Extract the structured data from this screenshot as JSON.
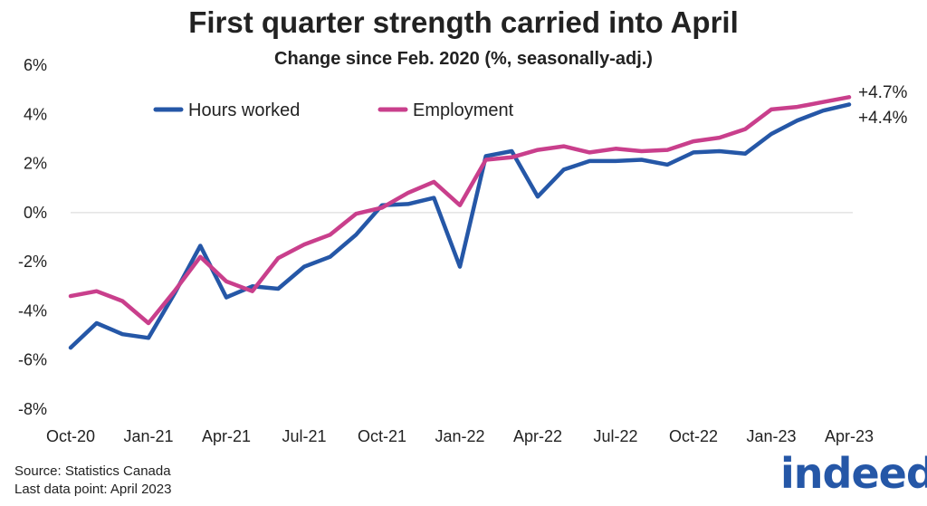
{
  "chart_data": {
    "type": "line",
    "title": "First quarter strength carried into April",
    "subtitle": "Change since Feb. 2020 (%, seasonally-adj.)",
    "xlabel": "",
    "ylabel": "",
    "ylim": [
      -8,
      6
    ],
    "y_ticks": [
      "6%",
      "4%",
      "2%",
      "0%",
      "-2%",
      "-4%",
      "-6%",
      "-8%"
    ],
    "y_tick_values": [
      6,
      4,
      2,
      0,
      -2,
      -4,
      -6,
      -8
    ],
    "x_tick_labels": [
      "Oct-20",
      "Jan-21",
      "Apr-21",
      "Jul-21",
      "Oct-21",
      "Jan-22",
      "Apr-22",
      "Jul-22",
      "Oct-22",
      "Jan-23",
      "Apr-23"
    ],
    "x_tick_indices": [
      0,
      3,
      6,
      9,
      12,
      15,
      18,
      21,
      24,
      27,
      30
    ],
    "grid": "zero-line only",
    "legend_position": "top-left",
    "series": [
      {
        "name": "Hours worked",
        "color": "#2557a7",
        "values": [
          -5.5,
          -4.5,
          -4.95,
          -5.1,
          -3.3,
          -1.35,
          -3.45,
          -3.0,
          -3.1,
          -2.2,
          -1.8,
          -0.9,
          0.3,
          0.35,
          0.6,
          -2.2,
          2.3,
          2.5,
          0.65,
          1.75,
          2.1,
          2.1,
          2.15,
          1.95,
          2.45,
          2.5,
          2.4,
          3.2,
          3.75,
          4.15,
          4.4
        ],
        "end_label": "+4.4%"
      },
      {
        "name": "Employment",
        "color": "#c93f8c",
        "values": [
          -3.4,
          -3.2,
          -3.6,
          -4.5,
          -3.2,
          -1.8,
          -2.8,
          -3.2,
          -1.85,
          -1.3,
          -0.9,
          -0.05,
          0.2,
          0.8,
          1.25,
          0.3,
          2.15,
          2.25,
          2.55,
          2.7,
          2.45,
          2.6,
          2.5,
          2.55,
          2.9,
          3.05,
          3.4,
          4.2,
          4.3,
          4.5,
          4.7
        ],
        "end_label": "+4.7%"
      }
    ]
  },
  "source": "Source: Statistics Canada",
  "last_data_point": "Last data point: April 2023",
  "logo_text": "indeed"
}
